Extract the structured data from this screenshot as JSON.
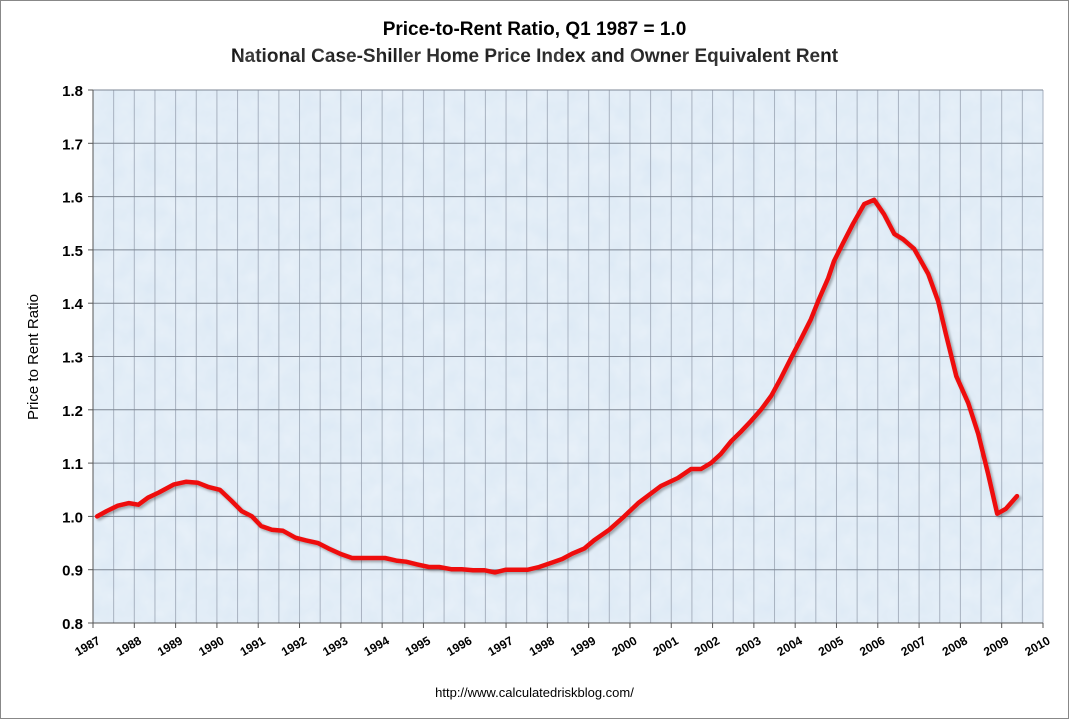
{
  "chart_data": {
    "type": "line",
    "title": "Price-to-Rent Ratio, Q1 1987 = 1.0",
    "subtitle": "National Case-Shiller Home Price Index and Owner Equivalent Rent",
    "xlabel": "",
    "ylabel": "Price to Rent Ratio",
    "xlim": [
      1987,
      2010
    ],
    "ylim": [
      0.8,
      1.8
    ],
    "x_ticks": [
      "1987",
      "1988",
      "1989",
      "1990",
      "1991",
      "1992",
      "1993",
      "1994",
      "1995",
      "1996",
      "1997",
      "1998",
      "1999",
      "2000",
      "2001",
      "2002",
      "2003",
      "2004",
      "2005",
      "2006",
      "2007",
      "2008",
      "2009",
      "2010"
    ],
    "y_ticks": [
      "0.8",
      "0.9",
      "1.0",
      "1.1",
      "1.2",
      "1.3",
      "1.4",
      "1.5",
      "1.6",
      "1.7",
      "1.8"
    ],
    "grid": true,
    "legend": "none",
    "line_color": "#ee1111",
    "background_color": "#dce9f5",
    "series": [
      {
        "x": [
          1987.1,
          1987.33,
          1987.6,
          1987.87,
          1988.1,
          1988.33,
          1988.6,
          1988.96,
          1989.25,
          1989.54,
          1989.8,
          1990.07,
          1990.34,
          1990.6,
          1990.85,
          1991.07,
          1991.33,
          1991.6,
          1991.9,
          1992.16,
          1992.45,
          1992.7,
          1992.98,
          1993.27,
          1993.54,
          1993.8,
          1994.07,
          1994.34,
          1994.58,
          1994.85,
          1995.13,
          1995.38,
          1995.67,
          1995.93,
          1996.2,
          1996.47,
          1996.73,
          1997.0,
          1997.27,
          1997.53,
          1997.8,
          1998.1,
          1998.36,
          1998.6,
          1998.9,
          1999.13,
          1999.5,
          1999.86,
          2000.2,
          2000.75,
          2001.16,
          2001.48,
          2001.72,
          2001.96,
          2002.2,
          2002.45,
          2002.7,
          2002.93,
          2003.17,
          2003.42,
          2003.66,
          2003.9,
          2004.14,
          2004.38,
          2004.58,
          2004.8,
          2004.94,
          2005.16,
          2005.4,
          2005.67,
          2005.91,
          2006.15,
          2006.4,
          2006.61,
          2006.88,
          2007.22,
          2007.46,
          2007.65,
          2007.9,
          2008.19,
          2008.43,
          2008.67,
          2008.89,
          2009.1,
          2009.37
        ],
        "y": [
          1.0,
          1.01,
          1.02,
          1.025,
          1.022,
          1.035,
          1.045,
          1.06,
          1.065,
          1.063,
          1.055,
          1.05,
          1.03,
          1.01,
          1.0,
          0.982,
          0.975,
          0.973,
          0.96,
          0.955,
          0.95,
          0.94,
          0.93,
          0.922,
          0.922,
          0.922,
          0.922,
          0.917,
          0.915,
          0.91,
          0.905,
          0.905,
          0.901,
          0.901,
          0.899,
          0.899,
          0.895,
          0.9,
          0.9,
          0.9,
          0.905,
          0.913,
          0.92,
          0.93,
          0.94,
          0.955,
          0.975,
          1.0,
          1.025,
          1.057,
          1.072,
          1.089,
          1.089,
          1.1,
          1.117,
          1.141,
          1.16,
          1.179,
          1.2,
          1.226,
          1.26,
          1.297,
          1.333,
          1.37,
          1.408,
          1.447,
          1.479,
          1.513,
          1.549,
          1.586,
          1.594,
          1.567,
          1.53,
          1.52,
          1.502,
          1.455,
          1.404,
          1.342,
          1.263,
          1.213,
          1.155,
          1.08,
          1.005,
          1.014,
          1.038
        ]
      }
    ]
  },
  "footer": {
    "url": "http://www.calculatedriskblog.com/"
  }
}
